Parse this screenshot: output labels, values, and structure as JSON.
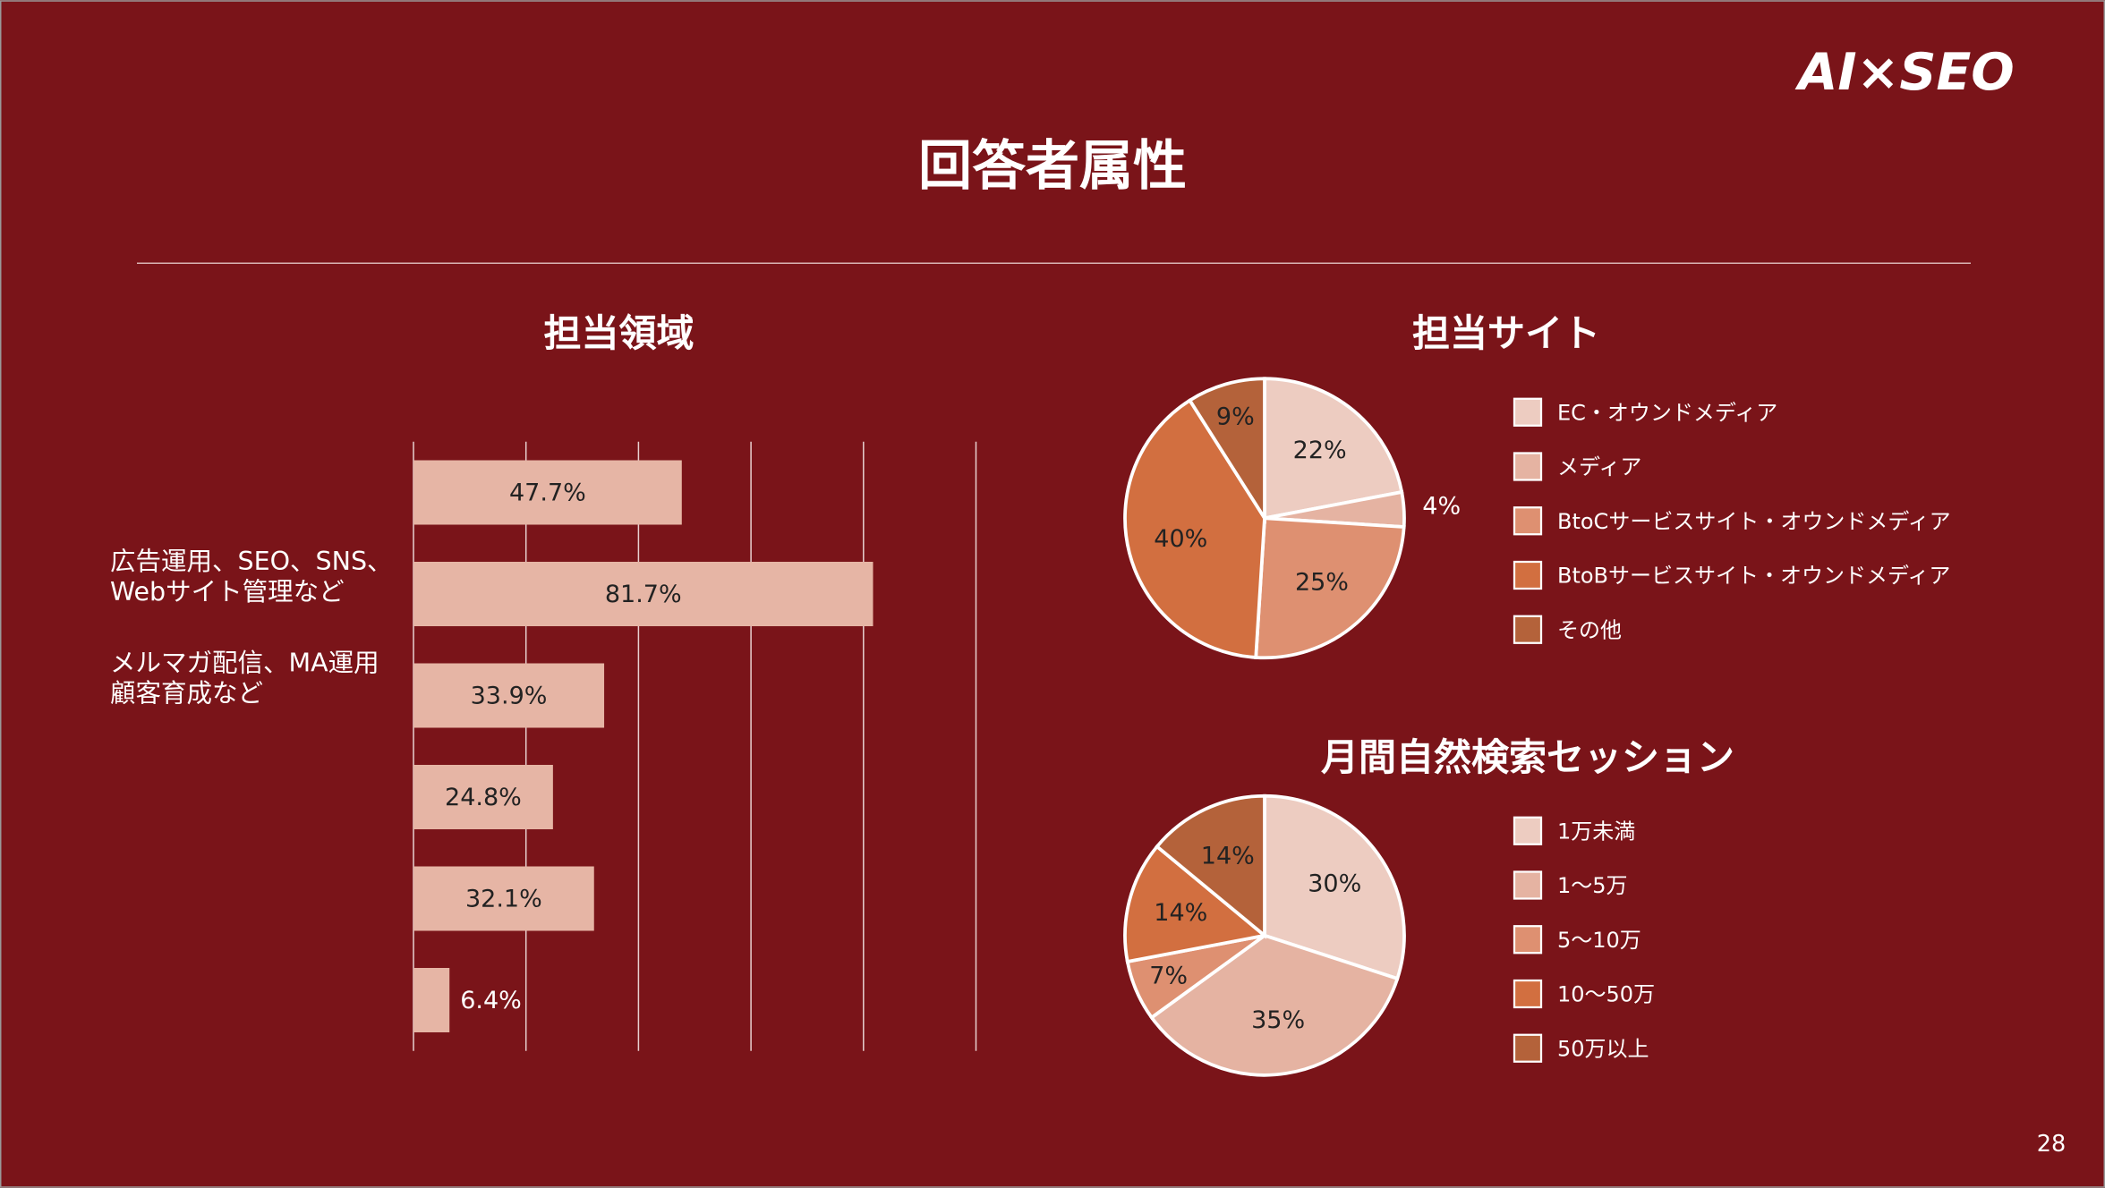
{
  "header": {
    "title": "回答者属性",
    "logo": "AI×SEO"
  },
  "page_number": "28",
  "chart_data": [
    {
      "type": "bar",
      "orientation": "horizontal",
      "title": "担当領域",
      "categories": [
        null,
        "広告運用、SEO、SNS、\nWebサイト管理など",
        "メルマガ配信、MA運用\n顧客育成など",
        null,
        null,
        null
      ],
      "values": [
        47.7,
        81.7,
        33.9,
        24.8,
        32.1,
        6.4
      ],
      "value_labels": [
        "47.7%",
        "81.7%",
        "33.9%",
        "24.8%",
        "32.1%",
        "6.4%"
      ],
      "color": "#e6b5a5",
      "xlim": [
        0,
        100
      ],
      "xticks": [
        0,
        20,
        40,
        60,
        80,
        100
      ],
      "grid": true
    },
    {
      "type": "pie",
      "title": "担当サイト",
      "categories": [
        "EC・オウンドメディア",
        "メディア",
        "BtoCサービスサイト・オウンドメディア",
        "BtoBサービスサイト・オウンドメディア",
        "その他"
      ],
      "values": [
        22,
        4,
        25,
        40,
        9
      ],
      "value_labels": [
        "22%",
        "4%",
        "25%",
        "40%",
        "9%"
      ],
      "colors": [
        "#edccc1",
        "#e5b3a2",
        "#de9071",
        "#d26f40",
        "#b4623a"
      ]
    },
    {
      "type": "pie",
      "title": "月間自然検索セッション",
      "categories": [
        "1万未満",
        "1〜5万",
        "5〜10万",
        "10〜50万",
        "50万以上"
      ],
      "values": [
        30,
        35,
        7,
        14,
        14
      ],
      "value_labels": [
        "30%",
        "35%",
        "7%",
        "14%",
        "14%"
      ],
      "colors": [
        "#edccc1",
        "#e5b3a2",
        "#de9071",
        "#d26f40",
        "#b4623a"
      ]
    }
  ]
}
